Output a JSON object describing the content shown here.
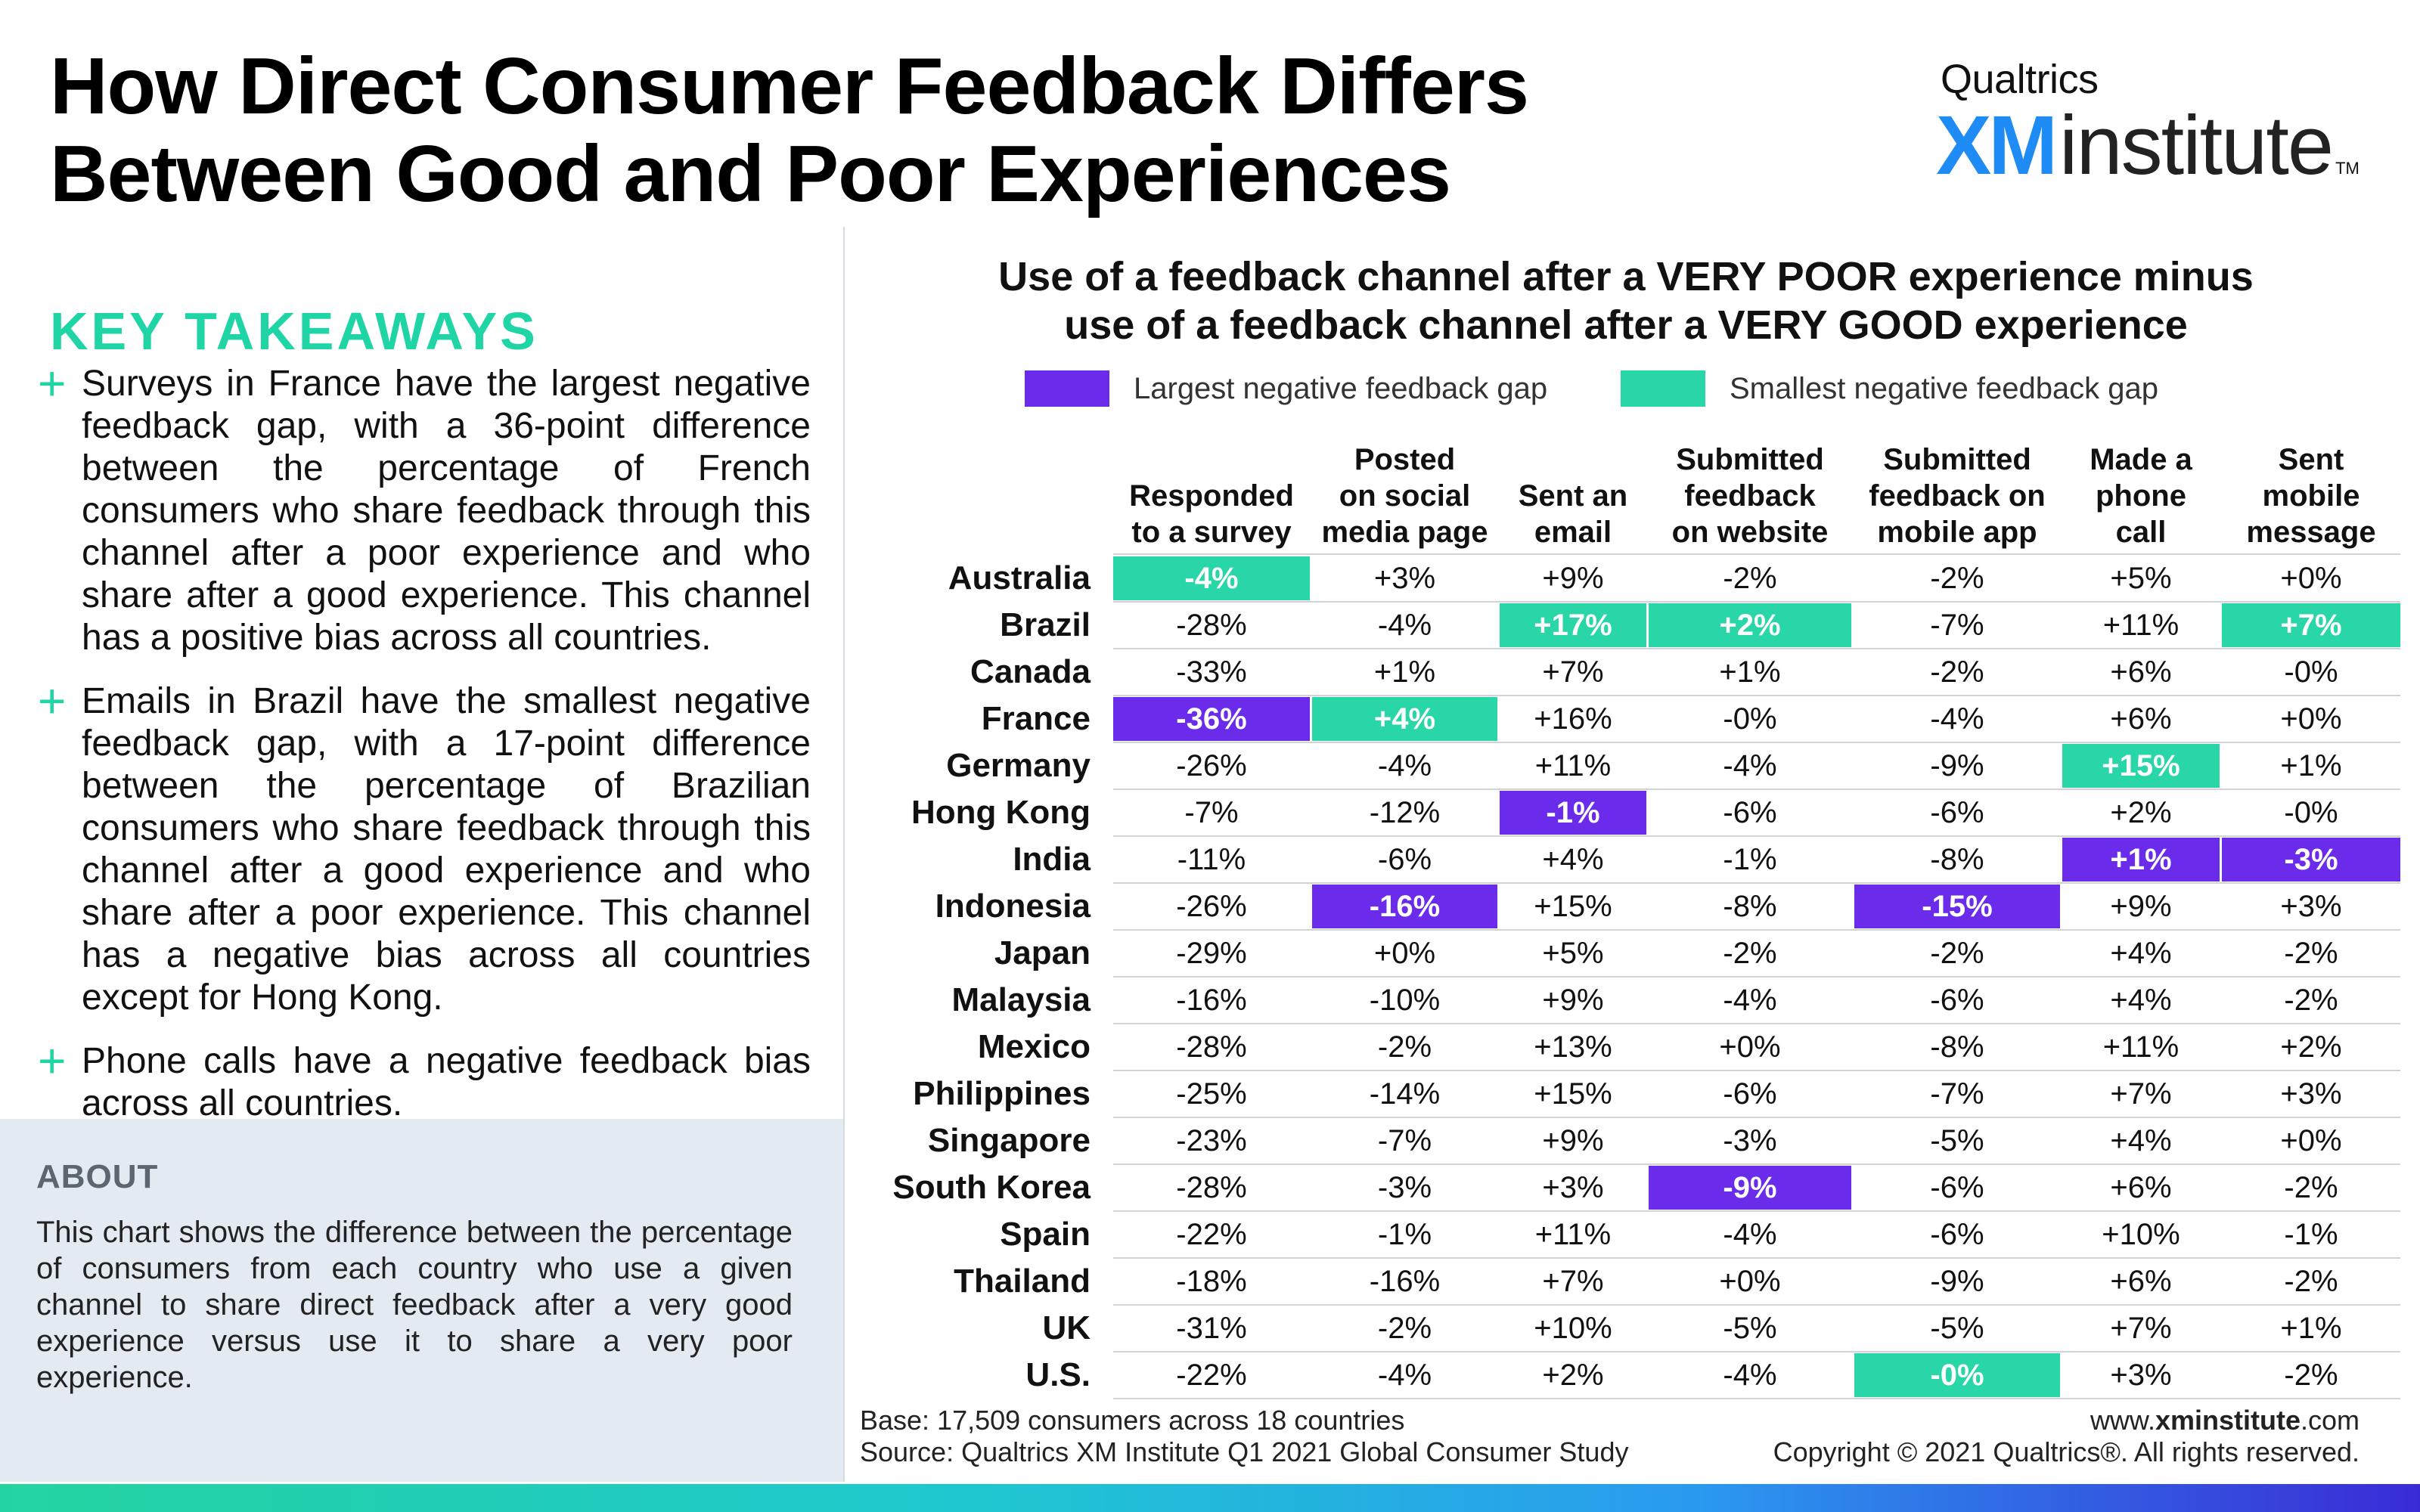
{
  "title": {
    "line1": "How Direct Consumer Feedback Differs",
    "line2": "Between Good and Poor Experiences"
  },
  "logo": {
    "brand": "Qualtrics",
    "xm": "XM",
    "institute": "institute",
    "tm": "TM"
  },
  "key_takeaways": {
    "heading": "KEY TAKEAWAYS",
    "items": [
      "Surveys in France have the largest negative feedback gap, with a 36-point difference between the percentage of French consumers who share feedback through this channel after a poor experience and who share after a good experience. This channel has a positive bias across all countries.",
      "Emails in Brazil have the smallest negative feedback gap, with a 17-point difference between the percentage of Brazilian consumers who share feedback through this channel after a good experience and who share after a poor experience. This channel has a negative bias across all countries except for Hong Kong.",
      "Phone calls have a negative feedback bias across all countries."
    ]
  },
  "about": {
    "heading": "ABOUT",
    "text": "This chart shows the difference between the percentage of consumers from each country who use a given channel to share direct feedback after a very good experience versus use it to share a very poor experience."
  },
  "colors": {
    "largest_gap": "#6b2bea",
    "smallest_gap": "#29d6a7",
    "accent": "#1fd4a5"
  },
  "chart_data": {
    "type": "table",
    "title_line1": "Use of a feedback channel after a VERY POOR experience minus",
    "title_line2": "use of a feedback channel after a VERY GOOD experience",
    "legend": {
      "largest": "Largest negative feedback gap",
      "smallest": "Smallest negative feedback gap"
    },
    "columns": [
      [
        "Responded",
        "to a survey"
      ],
      [
        "Posted",
        "on social",
        "media page"
      ],
      [
        "Sent an",
        "email"
      ],
      [
        "Submitted",
        "feedback",
        "on website"
      ],
      [
        "Submitted",
        "feedback on",
        "mobile app"
      ],
      [
        "Made a",
        "phone",
        "call"
      ],
      [
        "Sent",
        "mobile",
        "message"
      ]
    ],
    "rows": [
      {
        "country": "Australia",
        "values": [
          "-4%",
          "+3%",
          "+9%",
          "-2%",
          "-2%",
          "+5%",
          "+0%"
        ],
        "highlight": [
          "s",
          "",
          "",
          "",
          "",
          "",
          ""
        ]
      },
      {
        "country": "Brazil",
        "values": [
          "-28%",
          "-4%",
          "+17%",
          "+2%",
          "-7%",
          "+11%",
          "+7%"
        ],
        "highlight": [
          "",
          "",
          "s",
          "s",
          "",
          "",
          "s"
        ]
      },
      {
        "country": "Canada",
        "values": [
          "-33%",
          "+1%",
          "+7%",
          "+1%",
          "-2%",
          "+6%",
          "-0%"
        ],
        "highlight": [
          "",
          "",
          "",
          "",
          "",
          "",
          ""
        ]
      },
      {
        "country": "France",
        "values": [
          "-36%",
          "+4%",
          "+16%",
          "-0%",
          "-4%",
          "+6%",
          "+0%"
        ],
        "highlight": [
          "l",
          "s",
          "",
          "",
          "",
          "",
          ""
        ]
      },
      {
        "country": "Germany",
        "values": [
          "-26%",
          "-4%",
          "+11%",
          "-4%",
          "-9%",
          "+15%",
          "+1%"
        ],
        "highlight": [
          "",
          "",
          "",
          "",
          "",
          "s",
          ""
        ]
      },
      {
        "country": "Hong Kong",
        "values": [
          "-7%",
          "-12%",
          "-1%",
          "-6%",
          "-6%",
          "+2%",
          "-0%"
        ],
        "highlight": [
          "",
          "",
          "l",
          "",
          "",
          "",
          ""
        ]
      },
      {
        "country": "India",
        "values": [
          "-11%",
          "-6%",
          "+4%",
          "-1%",
          "-8%",
          "+1%",
          "-3%"
        ],
        "highlight": [
          "",
          "",
          "",
          "",
          "",
          "l",
          "l"
        ]
      },
      {
        "country": "Indonesia",
        "values": [
          "-26%",
          "-16%",
          "+15%",
          "-8%",
          "-15%",
          "+9%",
          "+3%"
        ],
        "highlight": [
          "",
          "l",
          "",
          "",
          "l",
          "",
          ""
        ]
      },
      {
        "country": "Japan",
        "values": [
          "-29%",
          "+0%",
          "+5%",
          "-2%",
          "-2%",
          "+4%",
          "-2%"
        ],
        "highlight": [
          "",
          "",
          "",
          "",
          "",
          "",
          ""
        ]
      },
      {
        "country": "Malaysia",
        "values": [
          "-16%",
          "-10%",
          "+9%",
          "-4%",
          "-6%",
          "+4%",
          "-2%"
        ],
        "highlight": [
          "",
          "",
          "",
          "",
          "",
          "",
          ""
        ]
      },
      {
        "country": "Mexico",
        "values": [
          "-28%",
          "-2%",
          "+13%",
          "+0%",
          "-8%",
          "+11%",
          "+2%"
        ],
        "highlight": [
          "",
          "",
          "",
          "",
          "",
          "",
          ""
        ]
      },
      {
        "country": "Philippines",
        "values": [
          "-25%",
          "-14%",
          "+15%",
          "-6%",
          "-7%",
          "+7%",
          "+3%"
        ],
        "highlight": [
          "",
          "",
          "",
          "",
          "",
          "",
          ""
        ]
      },
      {
        "country": "Singapore",
        "values": [
          "-23%",
          "-7%",
          "+9%",
          "-3%",
          "-5%",
          "+4%",
          "+0%"
        ],
        "highlight": [
          "",
          "",
          "",
          "",
          "",
          "",
          ""
        ]
      },
      {
        "country": "South Korea",
        "values": [
          "-28%",
          "-3%",
          "+3%",
          "-9%",
          "-6%",
          "+6%",
          "-2%"
        ],
        "highlight": [
          "",
          "",
          "",
          "l",
          "",
          "",
          ""
        ]
      },
      {
        "country": "Spain",
        "values": [
          "-22%",
          "-1%",
          "+11%",
          "-4%",
          "-6%",
          "+10%",
          "-1%"
        ],
        "highlight": [
          "",
          "",
          "",
          "",
          "",
          "",
          ""
        ]
      },
      {
        "country": "Thailand",
        "values": [
          "-18%",
          "-16%",
          "+7%",
          "+0%",
          "-9%",
          "+6%",
          "-2%"
        ],
        "highlight": [
          "",
          "",
          "",
          "",
          "",
          "",
          ""
        ]
      },
      {
        "country": "UK",
        "values": [
          "-31%",
          "-2%",
          "+10%",
          "-5%",
          "-5%",
          "+7%",
          "+1%"
        ],
        "highlight": [
          "",
          "",
          "",
          "",
          "",
          "",
          ""
        ]
      },
      {
        "country": "U.S.",
        "values": [
          "-22%",
          "-4%",
          "+2%",
          "-4%",
          "-0%",
          "+3%",
          "-2%"
        ],
        "highlight": [
          "",
          "",
          "",
          "",
          "s",
          "",
          ""
        ]
      }
    ]
  },
  "footer": {
    "base": "Base: 17,509 consumers across 18 countries",
    "source": "Source: Qualtrics XM Institute Q1 2021 Global Consumer Study",
    "url_prefix": "www.",
    "url_bold": "xminstitute",
    "url_suffix": ".com",
    "copyright": "Copyright © 2021 Qualtrics®. All rights reserved."
  }
}
